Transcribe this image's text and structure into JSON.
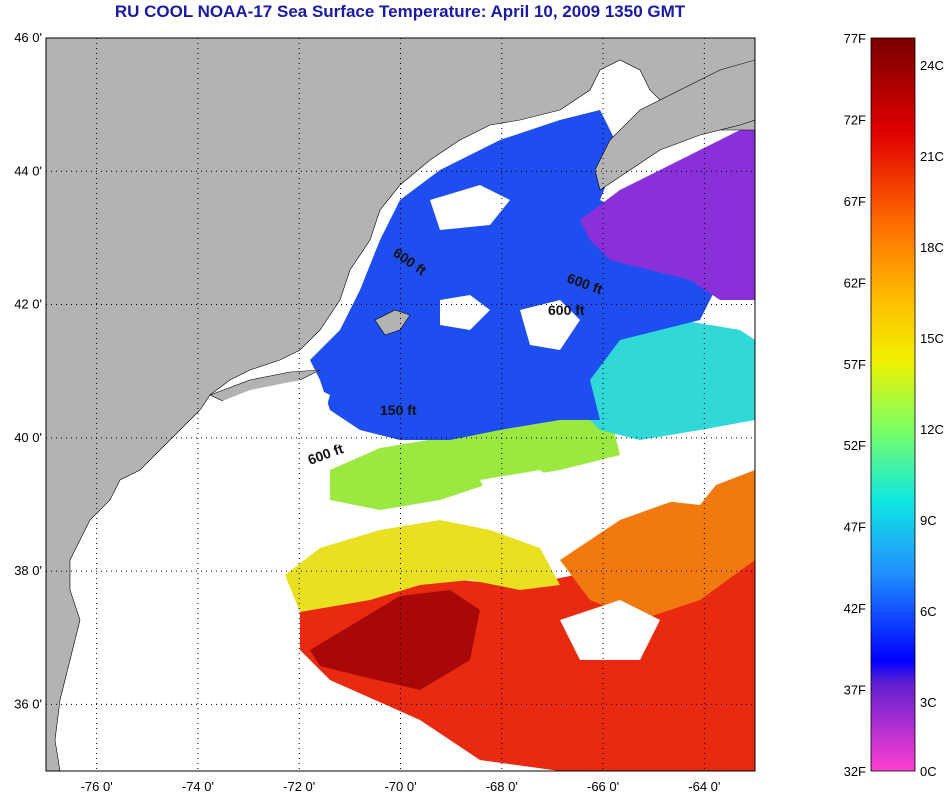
{
  "title": "RU COOL  NOAA-17  Sea Surface Temperature:  April 10, 2009 1350 GMT",
  "map": {
    "lat_labels": [
      {
        "deg": 46,
        "label": "46 0'"
      },
      {
        "deg": 44,
        "label": "44 0'"
      },
      {
        "deg": 42,
        "label": "42 0'"
      },
      {
        "deg": 40,
        "label": "40 0'"
      },
      {
        "deg": 38,
        "label": "38 0'"
      },
      {
        "deg": 36,
        "label": "36 0'"
      }
    ],
    "lon_labels": [
      {
        "deg": -76,
        "label": "-76 0'"
      },
      {
        "deg": -74,
        "label": "-74 0'"
      },
      {
        "deg": -72,
        "label": "-72 0'"
      },
      {
        "deg": -70,
        "label": "-70 0'"
      },
      {
        "deg": -68,
        "label": "-68 0'"
      },
      {
        "deg": -66,
        "label": "-66 0'"
      },
      {
        "deg": -64,
        "label": "-64 0'"
      }
    ],
    "lon_range": [
      -77,
      -63
    ],
    "lat_range": [
      35,
      46
    ],
    "contour_labels": [
      "600 ft",
      "600 ft",
      "600 ft",
      "150 ft",
      "600 ft"
    ],
    "colors": {
      "land": "#b3b3b3",
      "cloud": "#ffffff",
      "grid": "#000000"
    }
  },
  "colorbar": {
    "fahrenheit": [
      "77F",
      "72F",
      "67F",
      "62F",
      "57F",
      "52F",
      "47F",
      "42F",
      "37F",
      "32F"
    ],
    "celsius": [
      "24C",
      "21C",
      "18C",
      "15C",
      "12C",
      "9C",
      "6C",
      "3C",
      "0C"
    ]
  }
}
